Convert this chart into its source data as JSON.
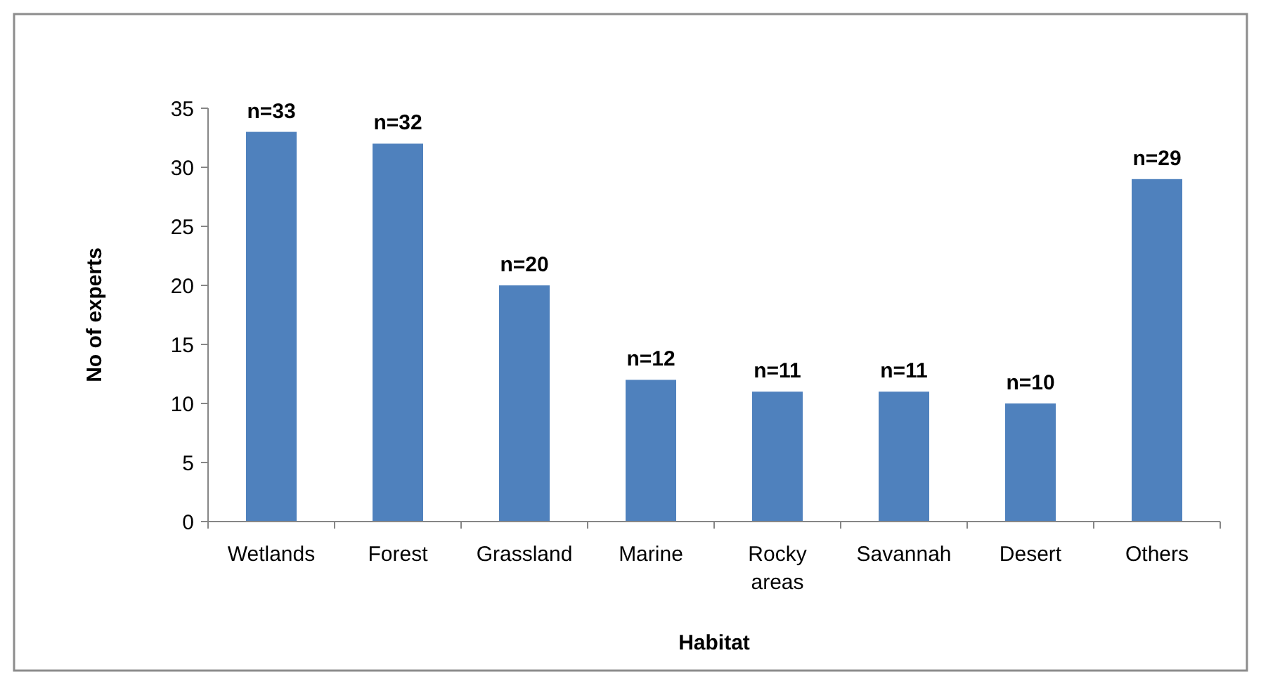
{
  "chart_data": {
    "type": "bar",
    "xlabel": "Habitat",
    "ylabel": "No of experts",
    "categories": [
      "Wetlands",
      "Forest",
      "Grassland",
      "Marine",
      "Rocky areas",
      "Savannah",
      "Desert",
      "Others"
    ],
    "values": [
      33,
      32,
      20,
      12,
      11,
      11,
      10,
      29
    ],
    "value_labels": [
      "n=33",
      "n=32",
      "n=20",
      "n=12",
      "n=11",
      "n=11",
      "n=10",
      "n=29"
    ],
    "color": "#4f81bd",
    "ylim": [
      0,
      35
    ],
    "yticks": [
      0,
      5,
      10,
      15,
      20,
      25,
      30,
      35
    ],
    "grid": false
  }
}
